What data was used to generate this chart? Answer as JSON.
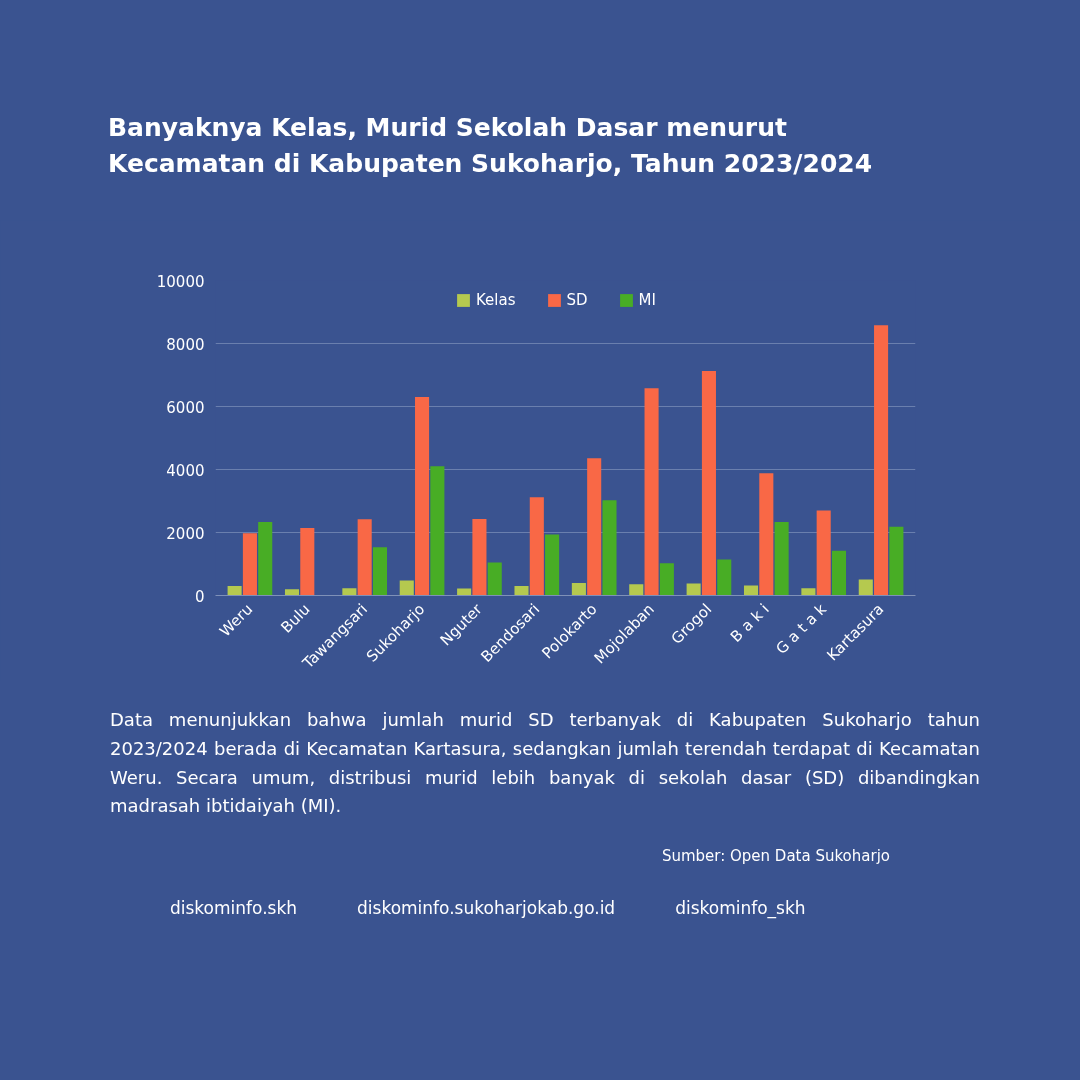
{
  "chart_data": {
    "type": "bar",
    "title": "Banyaknya Kelas, Murid Sekolah Dasar menurut\nKecamatan di Kabupaten Sukoharjo, Tahun 2023/2024",
    "categories": [
      "Weru",
      "Bulu",
      "Tawangsari",
      "Sukoharjo",
      "Nguter",
      "Bendosari",
      "Polokarto",
      "Mojolaban",
      "Grogol",
      "B a k i",
      "G a t a k",
      "Kartasura"
    ],
    "series": [
      {
        "name": "Kelas",
        "color": "#b5c94f",
        "values": [
          300,
          200,
          230,
          480,
          220,
          300,
          400,
          360,
          380,
          320,
          230,
          510
        ]
      },
      {
        "name": "SD",
        "color": "#f96846",
        "values": [
          1980,
          2140,
          2420,
          6300,
          2430,
          3120,
          4360,
          6580,
          7130,
          3880,
          2700,
          8580
        ]
      },
      {
        "name": "MI",
        "color": "#48ad25",
        "values": [
          2330,
          null,
          1530,
          4100,
          1050,
          1940,
          3020,
          1020,
          1140,
          2330,
          1420,
          2180
        ]
      }
    ],
    "ylim": [
      0,
      10000
    ],
    "yticks": [
      0,
      2000,
      4000,
      6000,
      8000,
      10000
    ],
    "grid": "y",
    "legend": "top",
    "annotations": [
      "Data menunjukkan bahwa jumlah murid SD terbanyak di Kabupaten Sukoharjo tahun 2023/2024 berada di Kecamatan Kartasura, sedangkan jumlah terendah terdapat di Kecamatan Weru. Secara umum, distribusi murid lebih banyak di sekolah dasar (SD) dibandingkan madrasah ibtidaiyah (MI).",
      "Sumber: Open Data Sukoharjo",
      "diskominfo.skh",
      "diskominfo.sukoharjokab.go.id",
      "diskominfo_skh"
    ]
  }
}
